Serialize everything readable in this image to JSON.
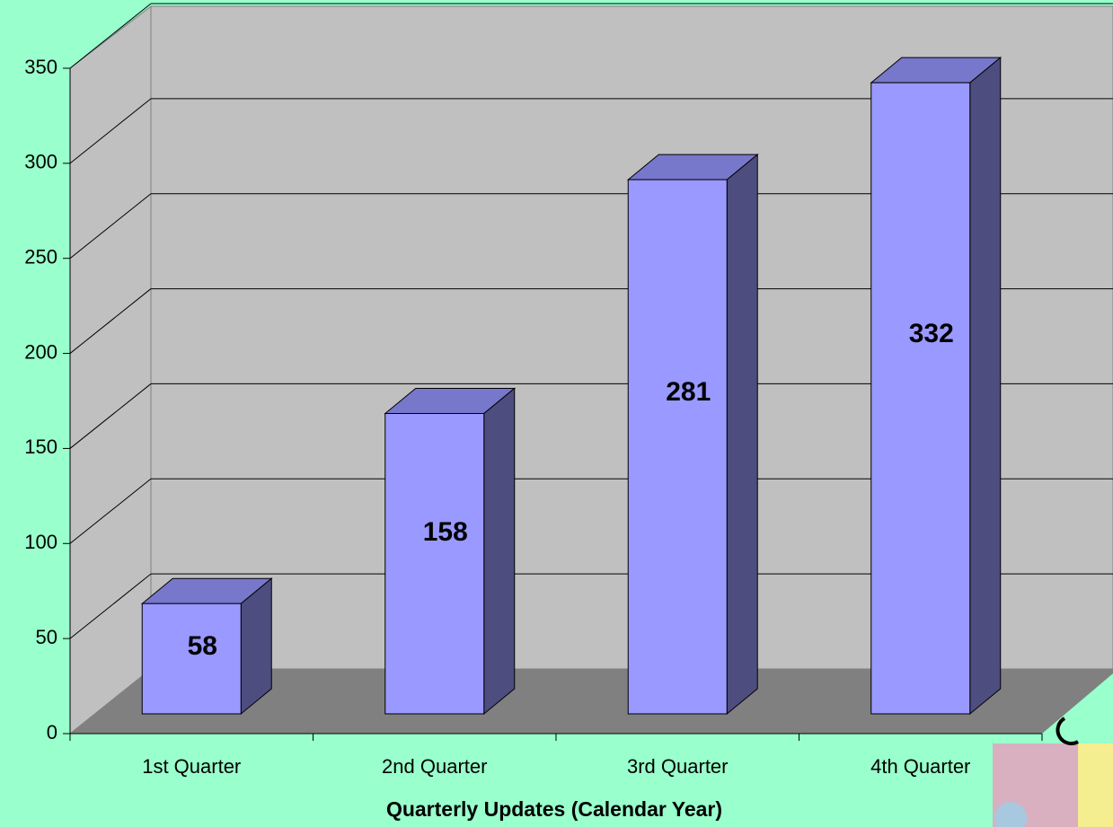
{
  "chart_data": {
    "type": "bar3d",
    "x_label": "Quarterly Updates (Calendar Year)",
    "categories": [
      "1st Quarter",
      "2nd Quarter",
      "3rd Quarter",
      "4th Quarter"
    ],
    "values": [
      58,
      158,
      281,
      332
    ],
    "color": "#9999ff",
    "side_color": "#4d4d80",
    "top_color": "#7777cc",
    "ylim": [
      0,
      350
    ],
    "yticks": [
      0,
      50,
      100,
      150,
      200,
      250,
      300,
      350
    ],
    "grid": true
  }
}
